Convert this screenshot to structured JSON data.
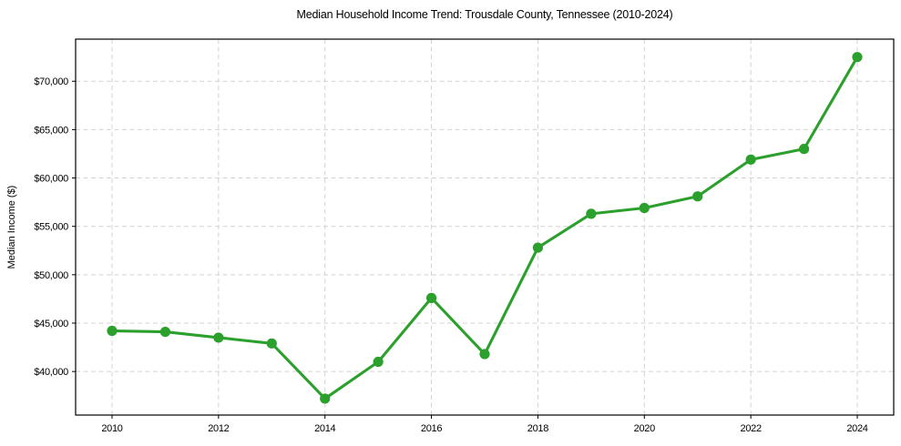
{
  "figure": {
    "background": "#ffffff"
  },
  "chart_data": {
    "type": "line",
    "title": "Median Household Income Trend: Trousdale County, Tennessee (2010-2024)",
    "xlabel": "",
    "ylabel": "Median Income ($)",
    "x": [
      2010,
      2011,
      2012,
      2013,
      2014,
      2015,
      2016,
      2017,
      2018,
      2019,
      2020,
      2021,
      2022,
      2023,
      2024
    ],
    "values": [
      44200,
      44100,
      43500,
      42900,
      37200,
      41000,
      47600,
      41800,
      52800,
      56300,
      56900,
      58100,
      61900,
      63000,
      72500
    ],
    "series_name": "Median Household Income",
    "xticks": [
      2010,
      2012,
      2014,
      2016,
      2018,
      2020,
      2022,
      2024
    ],
    "yticks": [
      40000,
      45000,
      50000,
      55000,
      60000,
      65000,
      70000
    ],
    "ytick_labels": [
      "$40,000",
      "$45,000",
      "$50,000",
      "$55,000",
      "$60,000",
      "$65,000",
      "$70,000"
    ],
    "ylim": [
      35500,
      74350
    ],
    "grid": true,
    "grid_style": "dashed",
    "legend_position": "none",
    "colors": {
      "line": "#2ca02c",
      "marker": "#2ca02c",
      "grid": "#d3d3d3",
      "axis": "#000000",
      "text": "#000000"
    }
  }
}
